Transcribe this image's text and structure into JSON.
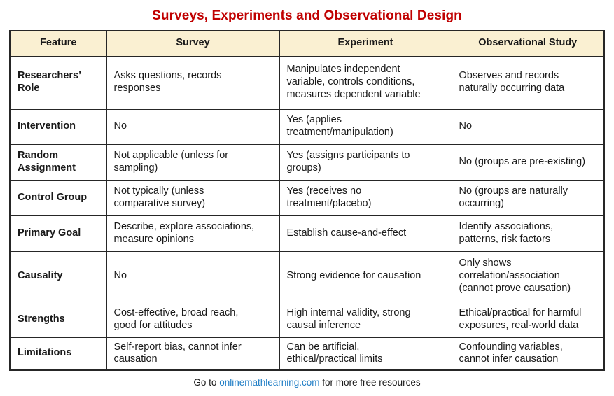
{
  "title": "Surveys, Experiments and Observational Design",
  "table": {
    "columns": [
      "Feature",
      "Survey",
      "Experiment",
      "Observational Study"
    ],
    "rows": [
      {
        "feature": "Researchers’\nRole",
        "survey": "Asks questions, records\nresponses",
        "experiment": "Manipulates independent\nvariable, controls conditions,\nmeasures dependent variable",
        "observational": "Observes and records\nnaturally occurring data"
      },
      {
        "feature": "Intervention",
        "survey": "No",
        "experiment": "Yes (applies\ntreatment/manipulation)",
        "observational": "No"
      },
      {
        "feature": "Random\nAssignment",
        "survey": "Not applicable (unless for\nsampling)",
        "experiment": "Yes (assigns participants to\ngroups)",
        "observational": "No (groups are pre-existing)"
      },
      {
        "feature": "Control Group",
        "survey": "Not typically (unless\ncomparative survey)",
        "experiment": "Yes (receives no\ntreatment/placebo)",
        "observational": "No (groups are naturally\noccurring)"
      },
      {
        "feature": "Primary Goal",
        "survey": "Describe, explore associations,\nmeasure opinions",
        "experiment": "Establish cause-and-effect",
        "observational": "Identify associations,\npatterns, risk factors"
      },
      {
        "feature": "Causality",
        "survey": "No",
        "experiment": "Strong evidence for causation",
        "observational": "Only shows\ncorrelation/association\n(cannot prove causation)"
      },
      {
        "feature": "Strengths",
        "survey": "Cost-effective, broad reach,\ngood for attitudes",
        "experiment": "High internal validity, strong\ncausal inference",
        "observational": "Ethical/practical for harmful\nexposures, real-world data"
      },
      {
        "feature": "Limitations",
        "survey": "Self-report bias, cannot infer\ncausation",
        "experiment": "Can be artificial,\nethical/practical limits",
        "observational": "Confounding variables,\ncannot infer causation"
      }
    ]
  },
  "footer": {
    "prefix": "Go to ",
    "link_text": "onlinemathlearning.com",
    "suffix": " for more free resources"
  },
  "colors": {
    "title": "#C00000",
    "header_bg": "#FAF0D2",
    "border": "#262626",
    "link": "#1F7DC5"
  }
}
